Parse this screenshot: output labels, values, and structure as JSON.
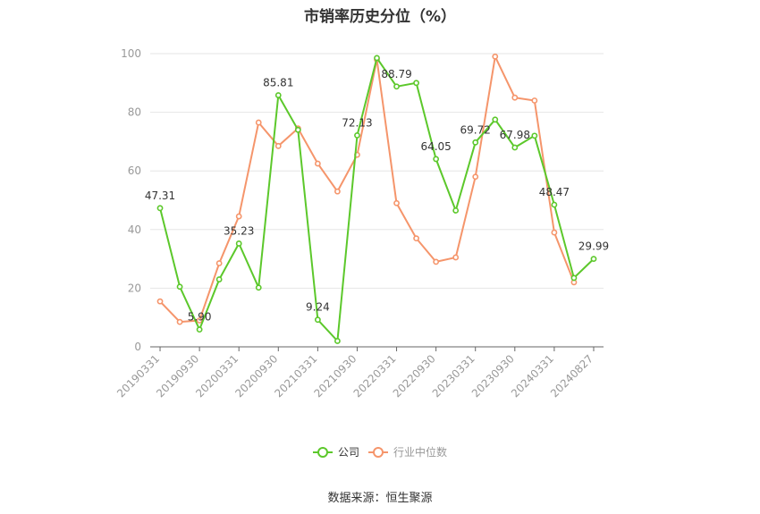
{
  "chart_data": {
    "type": "line",
    "title": "市销率历史分位（%）",
    "xlabel": "",
    "ylabel": "",
    "ylim": [
      0,
      100
    ],
    "yticks": [
      0,
      20,
      40,
      60,
      80,
      100
    ],
    "grid": "horizontal",
    "legend_position": "bottom-center",
    "x": [
      "20190331",
      "20190630",
      "20190930",
      "20191231",
      "20200331",
      "20200630",
      "20200930",
      "20201231",
      "20210331",
      "20210630",
      "20210930",
      "20211231",
      "20220331",
      "20220630",
      "20220930",
      "20221231",
      "20230331",
      "20230630",
      "20230930",
      "20231231",
      "20240331",
      "20240630",
      "20240827"
    ],
    "xtick_labels": [
      "20190331",
      "20190930",
      "20200331",
      "20200930",
      "20210331",
      "20210930",
      "20220331",
      "20220930",
      "20230331",
      "20230930",
      "20240331",
      "20240827"
    ],
    "series": [
      {
        "name": "公司",
        "color": "#5cc82b",
        "values": [
          47.31,
          20.5,
          5.9,
          23.0,
          35.23,
          20.2,
          85.81,
          74.0,
          9.24,
          2.0,
          72.13,
          98.5,
          88.79,
          90.0,
          64.05,
          46.5,
          69.72,
          77.5,
          67.98,
          72.0,
          48.47,
          23.5,
          29.99
        ],
        "labels": [
          "47.31",
          "",
          "5.90",
          "",
          "35.23",
          "",
          "85.81",
          "",
          "9.24",
          "",
          "72.13",
          "",
          "88.79",
          "",
          "64.05",
          "",
          "69.72",
          "",
          "67.98",
          "",
          "48.47",
          "",
          "29.99"
        ]
      },
      {
        "name": "行业中位数",
        "color": "#f5956b",
        "values": [
          15.5,
          8.5,
          9.0,
          28.5,
          44.5,
          76.5,
          68.5,
          74.5,
          62.5,
          53.0,
          65.5,
          98.0,
          49.0,
          37.0,
          29.0,
          30.5,
          58.0,
          99.0,
          85.0,
          84.0,
          39.0,
          22.0,
          null
        ]
      }
    ]
  },
  "source": "数据来源：恒生聚源"
}
